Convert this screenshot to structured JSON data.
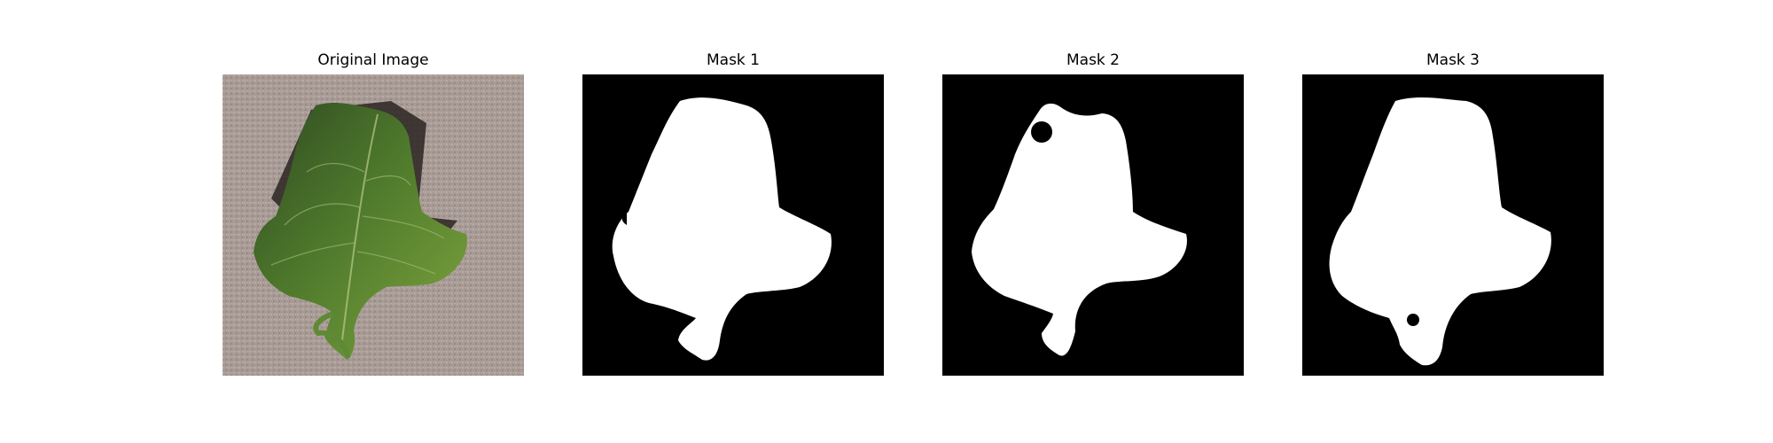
{
  "panels": [
    {
      "title": "Original Image",
      "content": "photo of a green leaf on a grey carpet"
    },
    {
      "title": "Mask 1",
      "content": "binary mask, white leaf shape on black"
    },
    {
      "title": "Mask 2",
      "content": "binary mask, white leaf shape on black"
    },
    {
      "title": "Mask 3",
      "content": "binary mask, white leaf shape on black"
    }
  ],
  "colors": {
    "background": "#ffffff",
    "mask_background": "#000000",
    "mask_foreground": "#ffffff",
    "carpet": "#a89b96",
    "leaf": "#4f7a2c"
  }
}
